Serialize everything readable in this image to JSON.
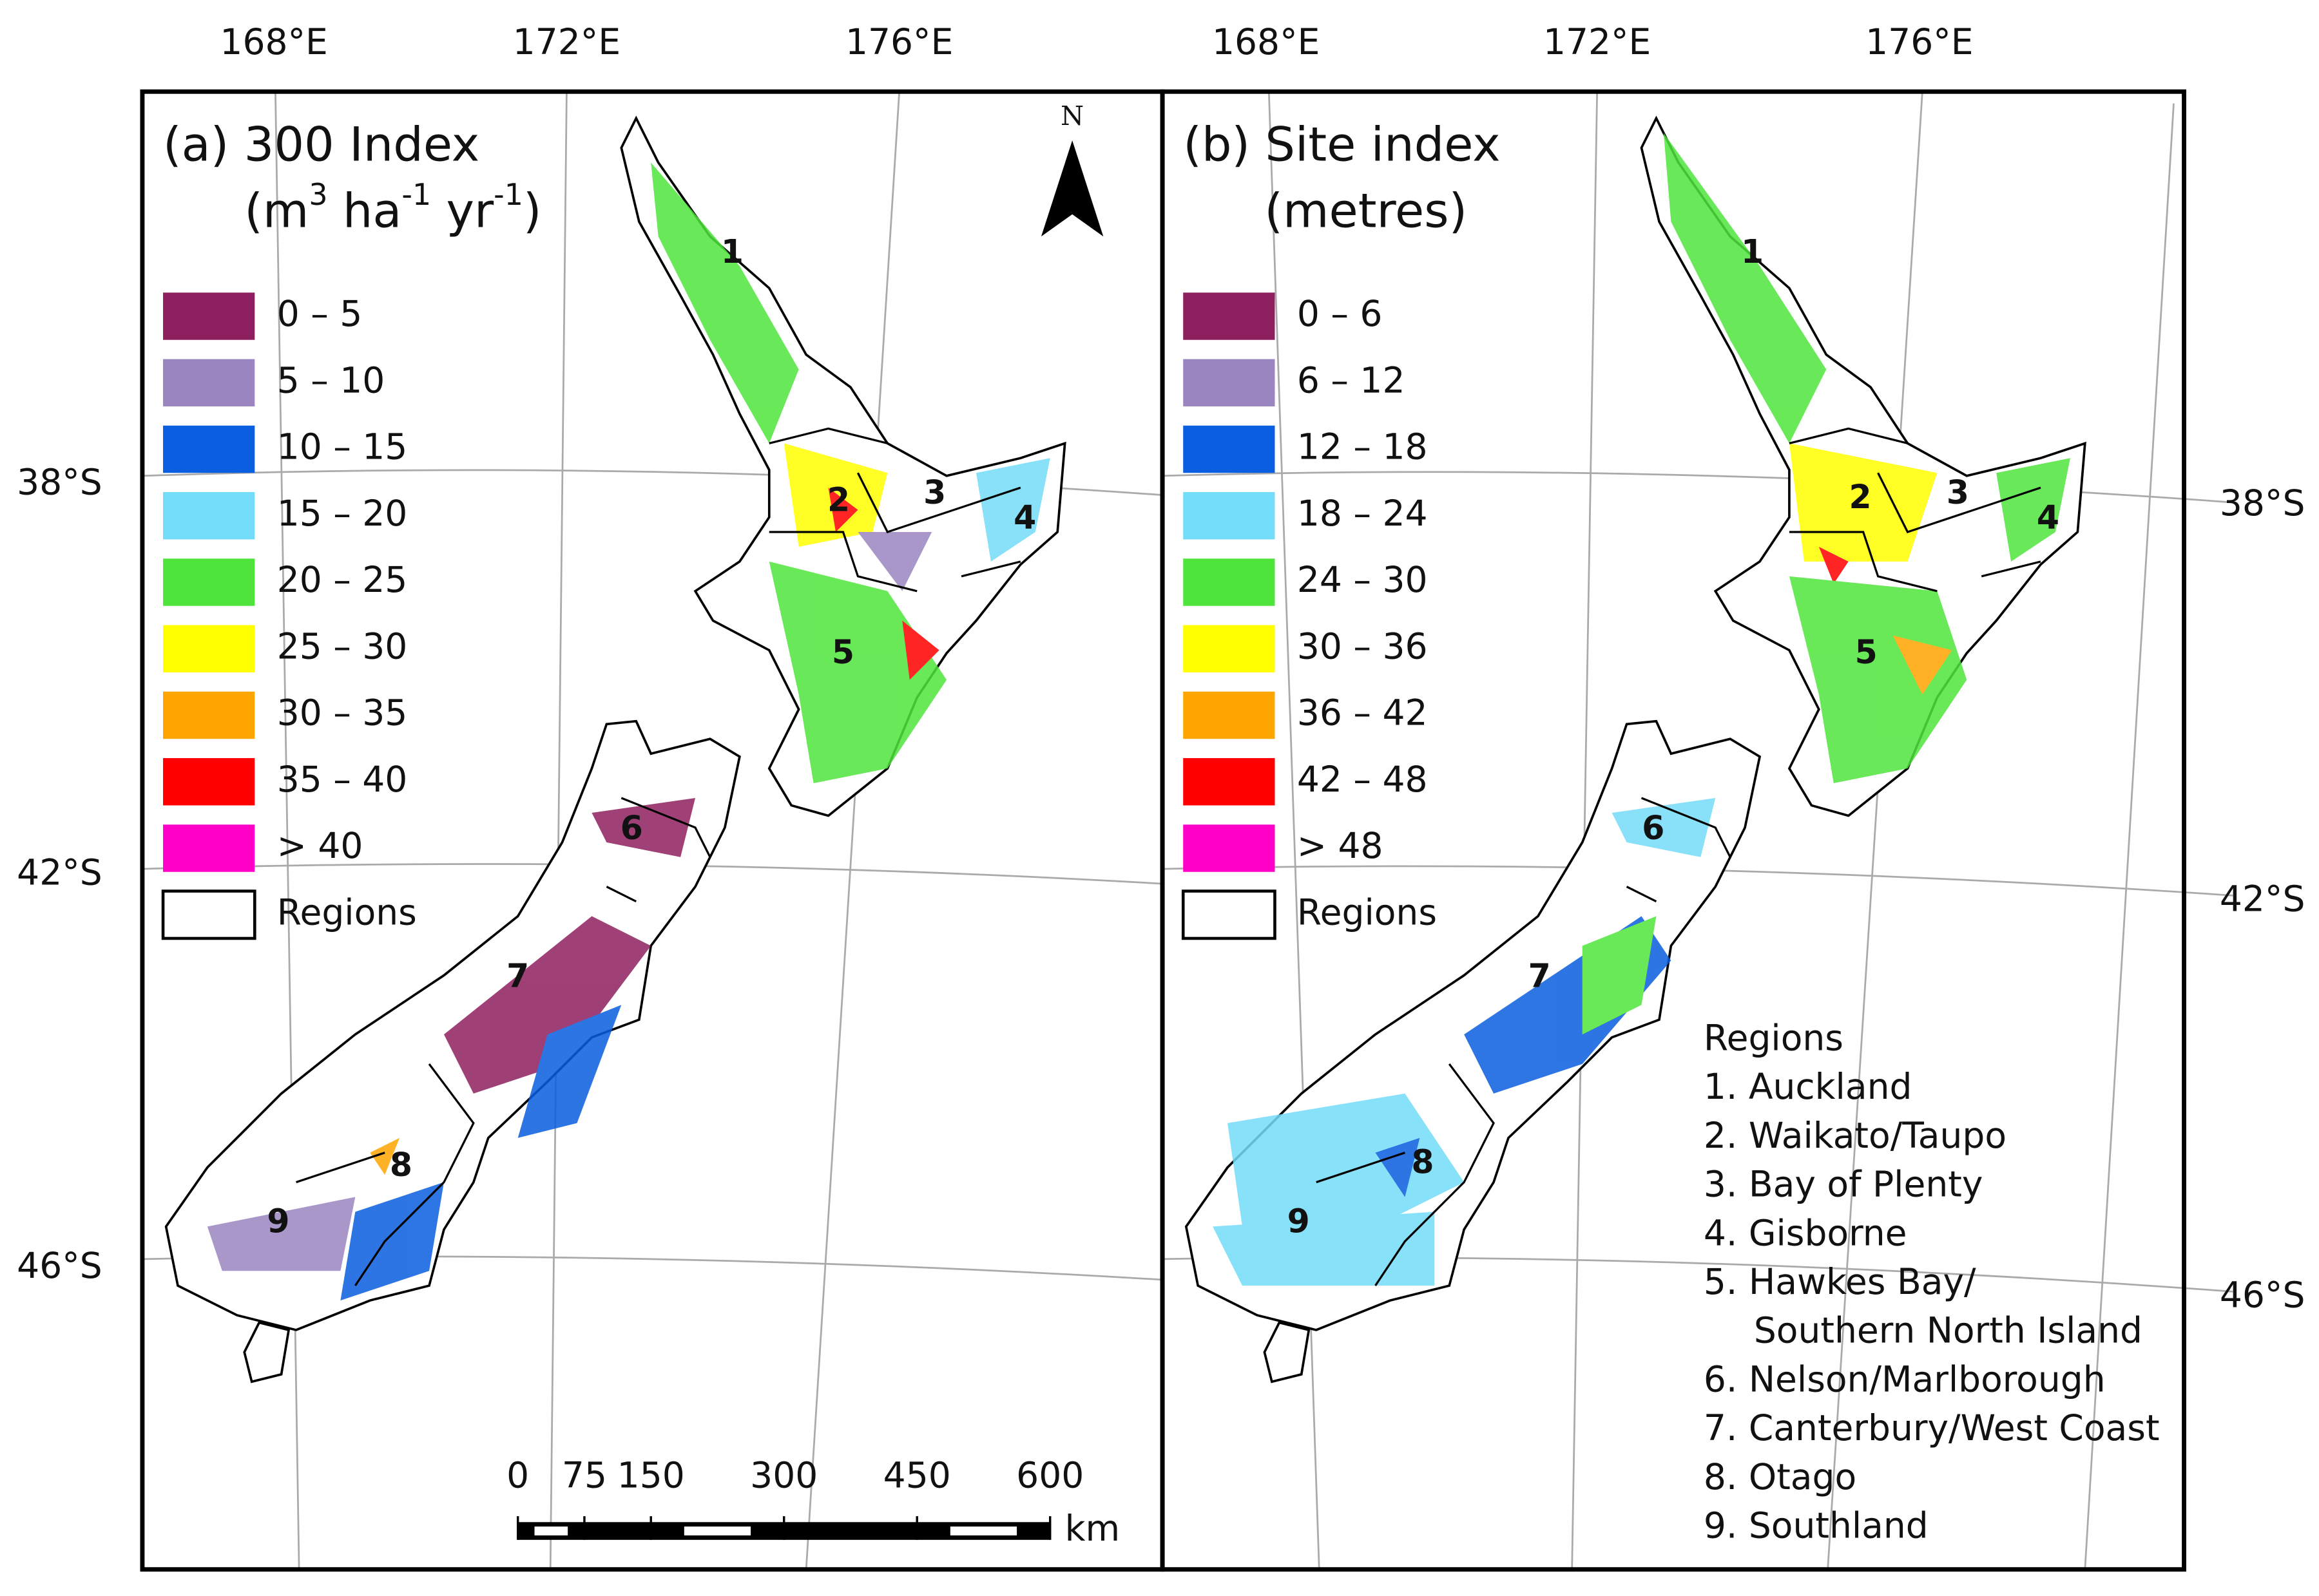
{
  "graticule": {
    "lon": [
      "168°E",
      "172°E",
      "176°E"
    ],
    "lat": [
      "38°S",
      "42°S",
      "46°S"
    ]
  },
  "north": "N",
  "panels": [
    {
      "title": "(a) 300 Index",
      "unit_parts": [
        "(m",
        "3",
        " ha",
        "-1",
        " yr",
        "-1",
        ")"
      ],
      "classes": [
        {
          "label": "0 – 5",
          "color": "#8e1f5e"
        },
        {
          "label": "5 – 10",
          "color": "#9b85c0"
        },
        {
          "label": "10 – 15",
          "color": "#0a5ee0"
        },
        {
          "label": "15 – 20",
          "color": "#73dcf8"
        },
        {
          "label": "20 – 25",
          "color": "#4fe43c"
        },
        {
          "label": "25 – 30",
          "color": "#ffff00"
        },
        {
          "label": "30 – 35",
          "color": "#ffa500"
        },
        {
          "label": "35 – 40",
          "color": "#ff0000"
        },
        {
          "label": "> 40",
          "color": "#ff00c8"
        }
      ],
      "regions_label": "Regions"
    },
    {
      "title": "(b) Site index",
      "unit_parts": [
        "(metres)"
      ],
      "classes": [
        {
          "label": "0 – 6",
          "color": "#8e1f5e"
        },
        {
          "label": "6 – 12",
          "color": "#9b85c0"
        },
        {
          "label": "12 – 18",
          "color": "#0a5ee0"
        },
        {
          "label": "18 – 24",
          "color": "#73dcf8"
        },
        {
          "label": "24 – 30",
          "color": "#4fe43c"
        },
        {
          "label": "30 – 36",
          "color": "#ffff00"
        },
        {
          "label": "36 – 42",
          "color": "#ffa500"
        },
        {
          "label": "42 – 48",
          "color": "#ff0000"
        },
        {
          "label": "> 48",
          "color": "#ff00c8"
        }
      ],
      "regions_label": "Regions"
    }
  ],
  "region_numbers": [
    "1",
    "2",
    "3",
    "4",
    "5",
    "6",
    "7",
    "8",
    "9"
  ],
  "regions_list": {
    "title": "Regions",
    "lines": [
      "1. Auckland",
      "2. Waikato/Taupo",
      "3. Bay of Plenty",
      "4. Gisborne",
      "5. Hawkes Bay/",
      "Southern North Island",
      "6. Nelson/Marlborough",
      "7. Canterbury/West Coast",
      "8. Otago",
      "9. Southland"
    ]
  },
  "scale_bar": {
    "ticks": [
      0,
      75,
      150,
      300,
      450,
      600
    ],
    "unit": "km"
  }
}
